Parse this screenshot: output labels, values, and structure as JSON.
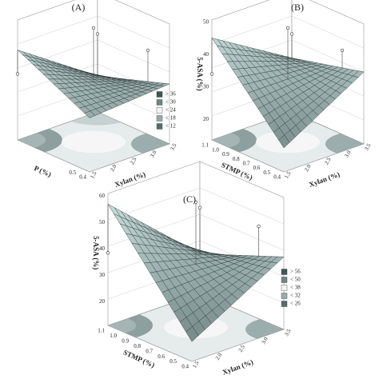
{
  "panels": [
    {
      "label": "(A)",
      "stmp_title": "P (%)",
      "xylan_title": "Xylan (%)",
      "stmp_ticks": [
        "0.5",
        "0.4"
      ],
      "xylan_ticks": [
        "1.5",
        "2.0",
        "2.5",
        "3.0",
        "3.5"
      ],
      "legend": [
        "> 36",
        "< 30",
        "< 24",
        "< 18",
        "< 12"
      ]
    },
    {
      "label": "(B)",
      "z_title": "5-ASA (%)",
      "z_ticks": [
        "50",
        "40",
        "30",
        "20"
      ],
      "stmp_title": "STMP (%)",
      "xylan_title": "Xylan (%)",
      "stmp_ticks": [
        "1.1",
        "1.0",
        "0.9",
        "0.8",
        "0.7",
        "0.6",
        "0.5",
        "0.4"
      ],
      "xylan_ticks": [
        "1.5",
        "2.0",
        "2.5",
        "3.0",
        "3.5"
      ]
    },
    {
      "label": "(C)",
      "z_title": "5-ASA (%)",
      "z_ticks": [
        "60",
        "50",
        "40",
        "30",
        "20"
      ],
      "stmp_title": "STMP (%)",
      "xylan_title": "Xylan (%)",
      "stmp_ticks": [
        "1.1",
        "1.0",
        "0.9",
        "0.8",
        "0.7",
        "0.6",
        "0.5",
        "0.4"
      ],
      "xylan_ticks": [
        "1.5",
        "2.0",
        "2.5",
        "3.0",
        "3.5"
      ],
      "legend": [
        "> 56",
        "< 50",
        "< 38",
        "< 32",
        "< 26"
      ]
    }
  ]
}
